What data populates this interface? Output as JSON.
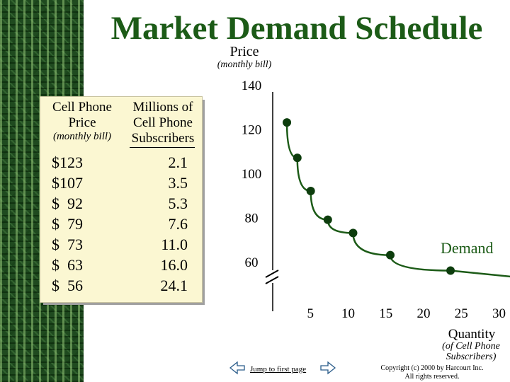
{
  "slide": {
    "title": "Market Demand Schedule",
    "y_axis": {
      "title": "Price",
      "subtitle": "(monthly bill)"
    },
    "x_axis": {
      "title": "Quantity",
      "subtitle_line1": "(of Cell Phone",
      "subtitle_line2": "Subscribers)"
    },
    "curve_label": "Demand",
    "colors": {
      "title": "#1c5b17",
      "border": "#1f4a1f",
      "table_bg": "#fbf7d2",
      "curve": "#1c5b17",
      "point": "#0d3d0d"
    }
  },
  "table": {
    "price_header_line1": "Cell Phone",
    "price_header_line2": "Price",
    "price_header_line3": "(monthly bill)",
    "subs_header_line1": "Millions of",
    "subs_header_line2": "Cell Phone",
    "subs_header_line3": "Subscribers",
    "rows": [
      {
        "price": "$123",
        "subscribers": "2.1"
      },
      {
        "price": "$107",
        "subscribers": "3.5"
      },
      {
        "price": "$  92",
        "subscribers": "5.3"
      },
      {
        "price": "$  79",
        "subscribers": "7.6"
      },
      {
        "price": "$  73",
        "subscribers": "11.0"
      },
      {
        "price": "$  63",
        "subscribers": "16.0"
      },
      {
        "price": "$  56",
        "subscribers": "24.1"
      }
    ]
  },
  "chart_data": {
    "type": "line",
    "title": "Market Demand Schedule",
    "ylabel": "Price",
    "xlabel": "Quantity",
    "y_ticks": [
      "140",
      "120",
      "100",
      "80",
      "60"
    ],
    "x_ticks": [
      "5",
      "10",
      "15",
      "20",
      "25",
      "30"
    ],
    "ylim": [
      60,
      140
    ],
    "xlim": [
      0,
      30
    ],
    "y_axis_break": true,
    "series": [
      {
        "name": "Demand",
        "x": [
          2.1,
          3.5,
          5.3,
          7.6,
          11.0,
          16.0,
          24.1
        ],
        "y": [
          123,
          107,
          92,
          79,
          73,
          63,
          56
        ]
      }
    ]
  },
  "footer": {
    "jump_link": "Jump to first page",
    "copyright_line1": "Copyright (c) 2000 by Harcourt Inc.",
    "copyright_line2": "All rights reserved.",
    "prev_icon": "arrow-left-icon",
    "next_icon": "arrow-right-icon"
  }
}
